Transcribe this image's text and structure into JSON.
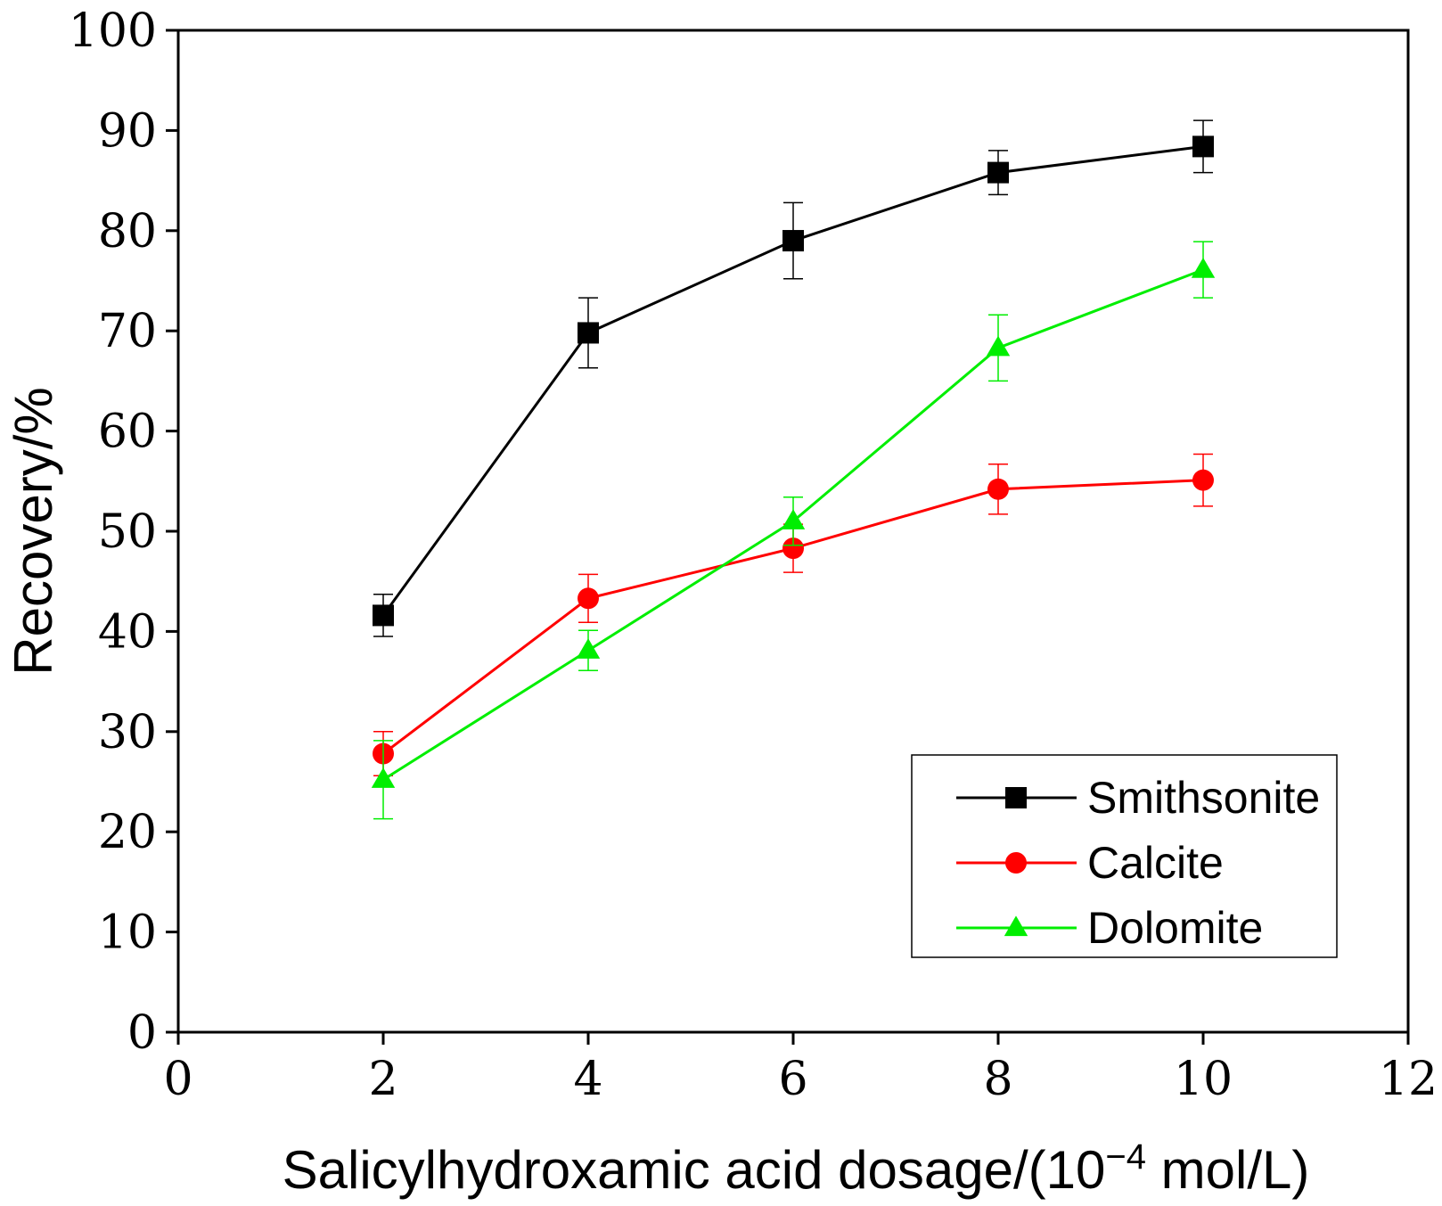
{
  "chart_data": {
    "type": "line",
    "xlabel": "Salicylhydroxamic acid dosage/(10",
    "xlabel_exp": "−4",
    "xlabel_tail": " mol/L)",
    "ylabel": "Recovery/%",
    "xlim": [
      0,
      12
    ],
    "ylim": [
      0,
      100
    ],
    "xticks": [
      0,
      2,
      4,
      6,
      8,
      10,
      12
    ],
    "yticks": [
      0,
      10,
      20,
      30,
      40,
      50,
      60,
      70,
      80,
      90,
      100
    ],
    "grid": false,
    "legend_position": "bottom-right",
    "x": [
      2,
      4,
      6,
      8,
      10
    ],
    "series": [
      {
        "name": "Smithsonite",
        "marker": "square",
        "color": "#000000",
        "values": [
          41.6,
          69.8,
          79.0,
          85.8,
          88.4
        ],
        "errors": [
          2.1,
          3.5,
          3.8,
          2.2,
          2.6
        ]
      },
      {
        "name": "Calcite",
        "marker": "circle",
        "color": "#ff0000",
        "values": [
          27.8,
          43.3,
          48.3,
          54.2,
          55.1
        ],
        "errors": [
          2.2,
          2.4,
          2.4,
          2.5,
          2.6
        ]
      },
      {
        "name": "Dolomite",
        "marker": "triangle",
        "color": "#00ee00",
        "values": [
          25.2,
          38.1,
          51.0,
          68.3,
          76.1
        ],
        "errors": [
          3.9,
          2.0,
          2.4,
          3.3,
          2.8
        ]
      }
    ]
  }
}
